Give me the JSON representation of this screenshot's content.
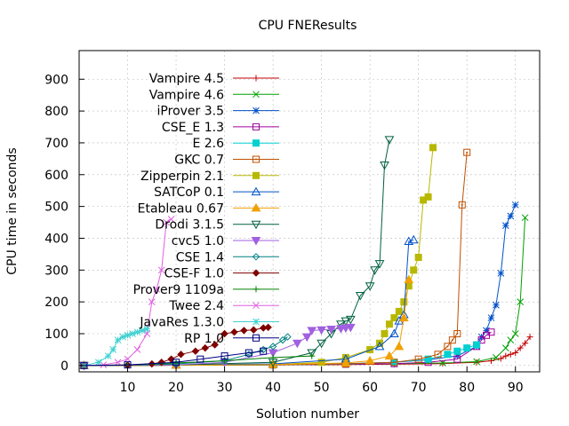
{
  "chart_data": {
    "type": "line",
    "title": "CPU FNEResults",
    "xlabel": "Solution number",
    "ylabel": "CPU time in seconds",
    "xlim": [
      0,
      95
    ],
    "ylim": [
      -20,
      990
    ],
    "xticks": [
      10,
      20,
      30,
      40,
      50,
      60,
      70,
      80,
      90
    ],
    "yticks": [
      0,
      100,
      200,
      300,
      400,
      500,
      600,
      700,
      800,
      900
    ],
    "xtick_labels": [
      "10",
      "20",
      "30",
      "40",
      "50",
      "60",
      "70",
      "80",
      "90"
    ],
    "ytick_labels": [
      "0",
      "100",
      "200",
      "300",
      "400",
      "500",
      "600",
      "700",
      "800",
      "900"
    ],
    "legend_position": "top-left",
    "series": [
      {
        "name": "Vampire 4.5",
        "color": "#c00000",
        "marker": "plus",
        "x": [
          1,
          20,
          40,
          55,
          65,
          75,
          82,
          85,
          87,
          88,
          89,
          90,
          91,
          92,
          93
        ],
        "y": [
          0,
          1,
          2,
          3,
          4,
          6,
          10,
          15,
          22,
          30,
          35,
          40,
          55,
          70,
          90
        ]
      },
      {
        "name": "Vampire 4.6",
        "color": "#00a000",
        "marker": "x",
        "x": [
          1,
          20,
          40,
          55,
          65,
          75,
          82,
          86,
          88,
          89,
          90,
          91,
          92
        ],
        "y": [
          0,
          1,
          2,
          4,
          6,
          8,
          12,
          25,
          55,
          80,
          100,
          200,
          465
        ]
      },
      {
        "name": "iProver 3.5",
        "color": "#0050c8",
        "marker": "star",
        "x": [
          1,
          20,
          40,
          55,
          65,
          72,
          78,
          82,
          83,
          84,
          85,
          86,
          87,
          88,
          89,
          90
        ],
        "y": [
          0,
          1,
          3,
          6,
          10,
          18,
          30,
          60,
          90,
          110,
          150,
          190,
          290,
          440,
          470,
          505
        ]
      },
      {
        "name": "CSE_E 1.3",
        "color": "#a000a0",
        "marker": "square-open",
        "x": [
          1,
          20,
          40,
          55,
          65,
          72,
          78,
          82,
          83,
          84,
          85
        ],
        "y": [
          0,
          1,
          2,
          4,
          6,
          10,
          20,
          60,
          80,
          95,
          105
        ]
      },
      {
        "name": "E 2.6",
        "color": "#00d0d0",
        "marker": "square-filled",
        "x": [
          1,
          20,
          40,
          55,
          65,
          72,
          76,
          78,
          80,
          82
        ],
        "y": [
          0,
          1,
          2,
          5,
          10,
          20,
          35,
          45,
          55,
          65
        ]
      },
      {
        "name": "GKC 0.7",
        "color": "#c05000",
        "marker": "square-dot",
        "x": [
          1,
          20,
          40,
          55,
          65,
          70,
          74,
          76,
          77,
          78,
          79,
          80
        ],
        "y": [
          0,
          1,
          2,
          5,
          10,
          20,
          35,
          60,
          80,
          100,
          505,
          670
        ]
      },
      {
        "name": "Zipperpin 2.1",
        "color": "#b8b800",
        "marker": "square-filled",
        "x": [
          1,
          20,
          40,
          50,
          55,
          60,
          62,
          63,
          64,
          65,
          66,
          67,
          68,
          69,
          70,
          71,
          72,
          73
        ],
        "y": [
          0,
          1,
          3,
          10,
          25,
          50,
          70,
          100,
          130,
          150,
          170,
          200,
          250,
          300,
          340,
          520,
          530,
          685
        ]
      },
      {
        "name": "SATCoP 0.1",
        "color": "#0050c8",
        "marker": "triangle-open",
        "x": [
          1,
          20,
          40,
          55,
          62,
          65,
          66,
          67,
          68,
          69
        ],
        "y": [
          0,
          2,
          5,
          20,
          60,
          100,
          140,
          160,
          390,
          395
        ]
      },
      {
        "name": "Etableau 0.67",
        "color": "#f0a000",
        "marker": "triangle-filled",
        "x": [
          1,
          20,
          40,
          55,
          60,
          64,
          66,
          67,
          68
        ],
        "y": [
          0,
          1,
          3,
          8,
          15,
          30,
          60,
          150,
          270
        ]
      },
      {
        "name": "Drodi 3.1.5",
        "color": "#006040",
        "marker": "triangle-down-open",
        "x": [
          1,
          20,
          40,
          48,
          50,
          52,
          54,
          55,
          56,
          58,
          60,
          61,
          62,
          63,
          64
        ],
        "y": [
          0,
          2,
          10,
          40,
          70,
          100,
          130,
          140,
          145,
          220,
          250,
          300,
          320,
          630,
          710
        ]
      },
      {
        "name": "cvc5 1.0",
        "color": "#a060e0",
        "marker": "triangle-down-filled",
        "x": [
          1,
          20,
          30,
          40,
          45,
          47,
          48,
          50,
          52,
          54,
          55,
          56
        ],
        "y": [
          0,
          2,
          10,
          40,
          70,
          90,
          110,
          112,
          114,
          116,
          118,
          120
        ]
      },
      {
        "name": "CSE 1.4",
        "color": "#008080",
        "marker": "diamond-open",
        "x": [
          1,
          10,
          20,
          30,
          35,
          38,
          40,
          42,
          43
        ],
        "y": [
          0,
          1,
          5,
          15,
          35,
          50,
          60,
          80,
          90
        ]
      },
      {
        "name": "CSE-F 1.0",
        "color": "#800000",
        "marker": "diamond-filled",
        "x": [
          1,
          10,
          15,
          17,
          19,
          21,
          24,
          26,
          28,
          30,
          32,
          34,
          36,
          38,
          39
        ],
        "y": [
          0,
          1,
          5,
          10,
          20,
          35,
          45,
          55,
          65,
          100,
          105,
          110,
          112,
          118,
          120
        ]
      },
      {
        "name": "Prover9 1109a",
        "color": "#008000",
        "marker": "plus",
        "x": [
          1,
          10,
          20,
          30,
          40,
          48
        ],
        "y": [
          0,
          2,
          8,
          15,
          25,
          30
        ]
      },
      {
        "name": "Twee 2.4",
        "color": "#e060e0",
        "marker": "x",
        "x": [
          1,
          5,
          8,
          10,
          12,
          14,
          15,
          16,
          17,
          18,
          19
        ],
        "y": [
          0,
          2,
          10,
          20,
          50,
          100,
          200,
          240,
          300,
          450,
          460
        ]
      },
      {
        "name": "JavaRes 1.3.0",
        "color": "#40d0d0",
        "marker": "star",
        "x": [
          1,
          4,
          6,
          7,
          8,
          9,
          10,
          11,
          12,
          13,
          14
        ],
        "y": [
          0,
          10,
          30,
          50,
          80,
          90,
          95,
          100,
          105,
          110,
          115
        ]
      },
      {
        "name": "RP 1.0",
        "color": "#000080",
        "marker": "square-open",
        "x": [
          1,
          10,
          20,
          25,
          30,
          35,
          38
        ],
        "y": [
          0,
          2,
          10,
          20,
          30,
          40,
          45
        ]
      }
    ]
  }
}
